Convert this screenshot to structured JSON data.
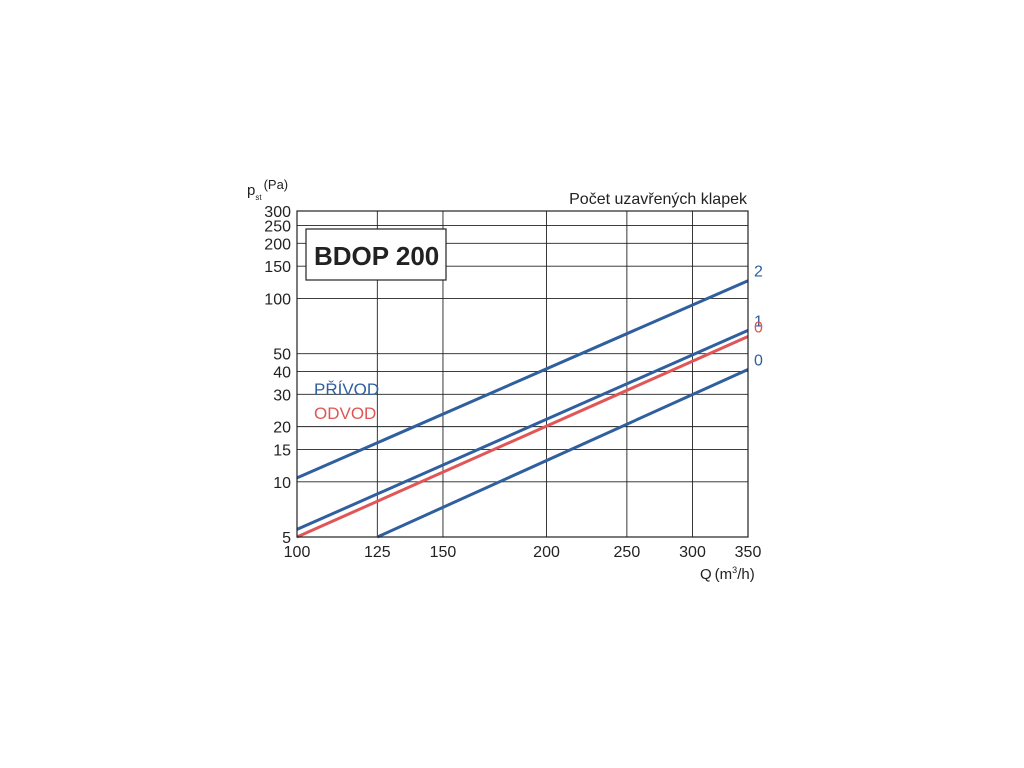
{
  "chart_data": {
    "type": "line",
    "title": "BDOP 200",
    "subtitle": "Počet uzavřených klapek",
    "y_axis": {
      "label_main": "p",
      "label_sub": "st",
      "label_unit": "(Pa)",
      "scale": "log",
      "range": [
        5,
        300
      ],
      "ticks": [
        5,
        10,
        15,
        20,
        30,
        40,
        50,
        100,
        150,
        200,
        250,
        300
      ],
      "tick_labels": [
        "5",
        "10",
        "15",
        "20",
        "30",
        "40",
        "50",
        "100",
        "150",
        "200",
        "250",
        "300"
      ]
    },
    "x_axis": {
      "label_main": "Q",
      "label_unit": "(m",
      "label_sup": "3",
      "label_tail": "/h)",
      "scale": "log",
      "range": [
        100,
        350
      ],
      "ticks": [
        100,
        125,
        150,
        200,
        250,
        300,
        350
      ],
      "tick_labels": [
        "100",
        "125",
        "150",
        "200",
        "250",
        "300",
        "350"
      ]
    },
    "grid": true,
    "legend": [
      {
        "label": "PŘÍVOD",
        "color": "#2f5f9e"
      },
      {
        "label": "ODVOD",
        "color": "#e05555"
      }
    ],
    "series": [
      {
        "name": "2",
        "group": "PŘÍVOD",
        "color": "#2f5f9e",
        "x": [
          100,
          350
        ],
        "y": [
          10.5,
          125
        ]
      },
      {
        "name": "1",
        "group": "PŘÍVOD",
        "color": "#2f5f9e",
        "x": [
          100,
          350
        ],
        "y": [
          5.5,
          67
        ]
      },
      {
        "name": "0",
        "group": "ODVOD",
        "color": "#e05555",
        "x": [
          100,
          350
        ],
        "y": [
          5,
          62
        ]
      },
      {
        "name": "0",
        "group": "PŘÍVOD",
        "color": "#2f5f9e",
        "x": [
          125,
          350
        ],
        "y": [
          5,
          41
        ]
      }
    ]
  }
}
